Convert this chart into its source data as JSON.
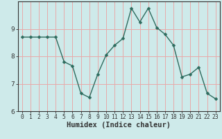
{
  "x": [
    0,
    1,
    2,
    3,
    4,
    5,
    6,
    7,
    8,
    9,
    10,
    11,
    12,
    13,
    14,
    15,
    16,
    17,
    18,
    19,
    20,
    21,
    22,
    23
  ],
  "y": [
    8.7,
    8.7,
    8.7,
    8.7,
    8.7,
    7.8,
    7.65,
    6.65,
    6.5,
    7.35,
    8.05,
    8.4,
    8.65,
    9.75,
    9.25,
    9.75,
    9.05,
    8.8,
    8.4,
    7.25,
    7.35,
    7.6,
    6.65,
    6.45
  ],
  "line_color": "#2e6b5e",
  "marker": "D",
  "marker_size": 2.5,
  "bg_color": "#ceeaea",
  "grid_color": "#e8aaaa",
  "axis_color": "#333333",
  "xlabel": "Humidex (Indice chaleur)",
  "ylim": [
    6.0,
    10.0
  ],
  "xlim": [
    -0.5,
    23.5
  ],
  "yticks": [
    6,
    7,
    8,
    9
  ],
  "xticks": [
    0,
    1,
    2,
    3,
    4,
    5,
    6,
    7,
    8,
    9,
    10,
    11,
    12,
    13,
    14,
    15,
    16,
    17,
    18,
    19,
    20,
    21,
    22,
    23
  ],
  "xlabel_fontsize": 7.5,
  "tick_fontsize": 6.5
}
